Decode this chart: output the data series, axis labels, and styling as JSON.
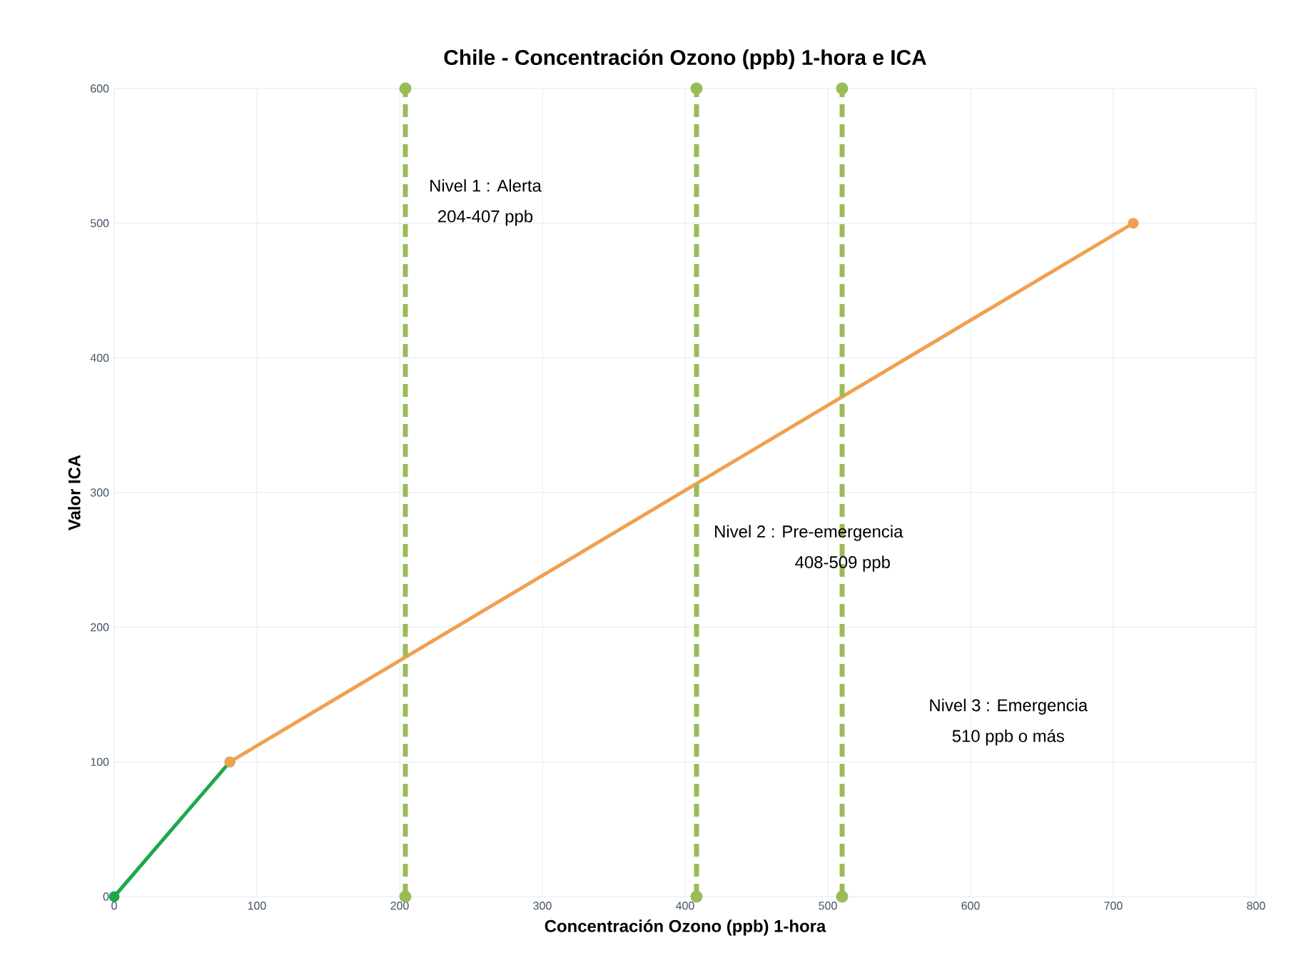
{
  "chart_data": {
    "type": "line",
    "title": "Chile - Concentración Ozono (ppb) 1-hora e ICA",
    "xlabel": "Concentración Ozono (ppb) 1-hora",
    "ylabel": "Valor ICA",
    "series": [
      {
        "x": [
          0,
          81
        ],
        "values": [
          0,
          100
        ],
        "color": "#1fa84a"
      },
      {
        "x": [
          81,
          714
        ],
        "values": [
          100,
          500
        ],
        "color": "#f0a050"
      },
      {
        "x": [
          204,
          204
        ],
        "values": [
          0,
          600
        ],
        "color": "#9bbb59",
        "line_style": "dashed"
      },
      {
        "x": [
          408,
          408
        ],
        "values": [
          0,
          600
        ],
        "color": "#9bbb59",
        "line_style": "dashed"
      },
      {
        "x": [
          510,
          510
        ],
        "values": [
          0,
          600
        ],
        "color": "#9bbb59",
        "line_style": "dashed"
      }
    ],
    "xlim": [
      0,
      800
    ],
    "ylim": [
      0,
      600
    ],
    "xticks": [
      0,
      100,
      200,
      300,
      400,
      500,
      600,
      700,
      800
    ],
    "yticks": [
      0,
      100,
      200,
      300,
      400,
      500,
      600
    ],
    "grid": true,
    "marker": "circle",
    "line_style": "solid",
    "annotations": [
      "Nivel 1 : Alerta",
      "204-407 ppb",
      "Nivel 2 : Pre-emergencia",
      "408-509 ppb",
      "Nivel 3 : Emergencia",
      "510 ppb o más"
    ]
  }
}
